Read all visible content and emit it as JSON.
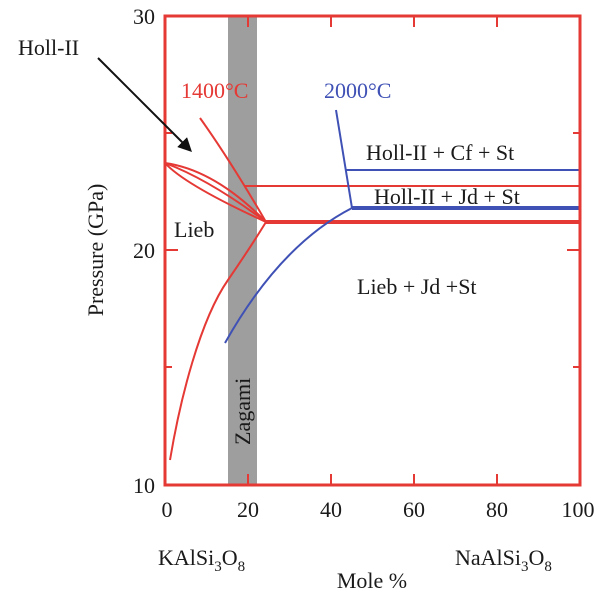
{
  "colors": {
    "frame": "#e53935",
    "red_curve": "#e53935",
    "blue_curve": "#3f51b5",
    "band": "#9e9e9e",
    "text": "#1a1a1a"
  },
  "axes": {
    "ylabel": "Pressure (GPa)",
    "xlabel": "Mole %",
    "xticks": [
      "0",
      "20",
      "40",
      "60",
      "80",
      "100"
    ],
    "yticks": [
      "10",
      "20",
      "30"
    ],
    "endmember_left": {
      "base": "KAlSi",
      "sub1": "3",
      "mid": "O",
      "sub2": "8"
    },
    "endmember_right": {
      "base": "NaAlSi",
      "sub1": "3",
      "mid": "O",
      "sub2": "8"
    }
  },
  "labels": {
    "holl2": "Holl-II",
    "t1400": "1400°C",
    "t2000": "2000°C",
    "lieb": "Lieb",
    "zagami": "Zagami",
    "field_cf": "Holl-II + Cf + St",
    "field_jd": "Holl-II + Jd + St",
    "field_lieb": "Lieb + Jd +St"
  }
}
